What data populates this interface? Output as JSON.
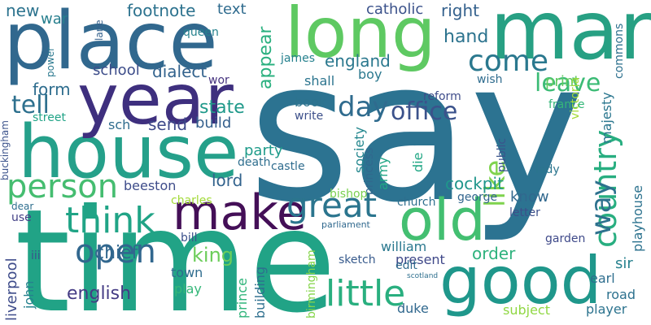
{
  "words": [
    {
      "text": "say",
      "color": "#2c7391"
    },
    {
      "text": "time",
      "color": "#21a386"
    },
    {
      "text": "man",
      "color": "#27a083"
    },
    {
      "text": "place",
      "color": "#31688e"
    },
    {
      "text": "long",
      "color": "#5ec962"
    },
    {
      "text": "house",
      "color": "#25a08a"
    },
    {
      "text": "year",
      "color": "#3e2f7e"
    },
    {
      "text": "good",
      "color": "#1f978b"
    },
    {
      "text": "old",
      "color": "#43bf71"
    },
    {
      "text": "make",
      "color": "#440f57"
    },
    {
      "text": "great",
      "color": "#2b758e"
    },
    {
      "text": "person",
      "color": "#45bd70"
    },
    {
      "text": "think",
      "color": "#20a486"
    },
    {
      "text": "country",
      "color": "#28ae80"
    },
    {
      "text": "come",
      "color": "#2a788e"
    },
    {
      "text": "little",
      "color": "#29af7f"
    },
    {
      "text": "open",
      "color": "#31678e"
    },
    {
      "text": "like",
      "color": "#7fd34e"
    },
    {
      "text": "day",
      "color": "#2f6b8e"
    },
    {
      "text": "way",
      "color": "#2d718e"
    },
    {
      "text": "leave",
      "color": "#3bbb75"
    },
    {
      "text": "office",
      "color": "#3b528b"
    },
    {
      "text": "tell",
      "color": "#2d708e"
    },
    {
      "text": "footnote",
      "color": "#2c728e"
    },
    {
      "text": "english",
      "color": "#443b84"
    },
    {
      "text": "lord",
      "color": "#33638d"
    },
    {
      "text": "king",
      "color": "#6ccd5a"
    },
    {
      "text": "chief",
      "color": "#31678e"
    },
    {
      "text": "hand",
      "color": "#2c738e"
    },
    {
      "text": "right",
      "color": "#34618d"
    },
    {
      "text": "catholic",
      "color": "#3b528b"
    },
    {
      "text": "england",
      "color": "#2a788e"
    },
    {
      "text": "appear",
      "color": "#2ab07f"
    },
    {
      "text": "form",
      "color": "#2e6d8e"
    },
    {
      "text": "new",
      "color": "#2c738e"
    },
    {
      "text": "war",
      "color": "#277f8e"
    },
    {
      "text": "text",
      "color": "#2f6b8e"
    },
    {
      "text": "shall",
      "color": "#2b748e"
    },
    {
      "text": "queen",
      "color": "#26828e"
    },
    {
      "text": "dialect",
      "color": "#33638d"
    },
    {
      "text": "school",
      "color": "#3d4d8a"
    },
    {
      "text": "state",
      "color": "#1f998a"
    },
    {
      "text": "party",
      "color": "#1e9b8a"
    },
    {
      "text": "build",
      "color": "#35608d"
    },
    {
      "text": "send",
      "color": "#3e4989"
    },
    {
      "text": "sch",
      "color": "#2f6c8e"
    },
    {
      "text": "street",
      "color": "#20a386"
    },
    {
      "text": "book",
      "color": "#2c738e"
    },
    {
      "text": "write",
      "color": "#3c4f8a"
    },
    {
      "text": "boy",
      "color": "#2a788e"
    },
    {
      "text": "james",
      "color": "#26818e"
    },
    {
      "text": "know",
      "color": "#31688e"
    },
    {
      "text": "order",
      "color": "#2db27d"
    },
    {
      "text": "lady",
      "color": "#2b758e"
    },
    {
      "text": "print",
      "color": "#60ca60"
    },
    {
      "text": "france",
      "color": "#35b779"
    },
    {
      "text": "reform",
      "color": "#3e4c8a"
    },
    {
      "text": "wish",
      "color": "#2f6c8e"
    },
    {
      "text": "victoria",
      "color": "#a5db36"
    },
    {
      "text": "public",
      "color": "#3a548c"
    },
    {
      "text": "majesty",
      "color": "#2a768e"
    },
    {
      "text": "commons",
      "color": "#2d708e"
    },
    {
      "text": "cockpit",
      "color": "#1f968b"
    },
    {
      "text": "society",
      "color": "#24878e"
    },
    {
      "text": "princess",
      "color": "#31688e"
    },
    {
      "text": "die",
      "color": "#22a785"
    },
    {
      "text": "army",
      "color": "#21a685"
    },
    {
      "text": "castle",
      "color": "#2f6c8e"
    },
    {
      "text": "death",
      "color": "#2e6e8e"
    },
    {
      "text": "beeston",
      "color": "#3e4c8a"
    },
    {
      "text": "bishop",
      "color": "#7ad151"
    },
    {
      "text": "charles",
      "color": "#a2da37"
    },
    {
      "text": "church",
      "color": "#2e6f8e"
    },
    {
      "text": "george",
      "color": "#32658e"
    },
    {
      "text": "letter",
      "color": "#3c4f8a"
    },
    {
      "text": "william",
      "color": "#2a788e"
    },
    {
      "text": "present",
      "color": "#3f4889"
    },
    {
      "text": "edit",
      "color": "#2f6b8e"
    },
    {
      "text": "garden",
      "color": "#3e4989"
    },
    {
      "text": "sir",
      "color": "#26818e"
    },
    {
      "text": "earl",
      "color": "#2e6e8e"
    },
    {
      "text": "road",
      "color": "#2c718e"
    },
    {
      "text": "player",
      "color": "#2c738e"
    },
    {
      "text": "subject",
      "color": "#90d743"
    },
    {
      "text": "duke",
      "color": "#31688e"
    },
    {
      "text": "sketch",
      "color": "#375a8c"
    },
    {
      "text": "prince",
      "color": "#31b57b"
    },
    {
      "text": "building",
      "color": "#2e6f8e"
    },
    {
      "text": "birmingham",
      "color": "#85d54a"
    },
    {
      "text": "town",
      "color": "#2f6c8e"
    },
    {
      "text": "play",
      "color": "#35b779"
    },
    {
      "text": "bill",
      "color": "#3b518b"
    },
    {
      "text": "john",
      "color": "#26818e"
    },
    {
      "text": "liverpool",
      "color": "#3e4c8a"
    },
    {
      "text": "use",
      "color": "#424086"
    },
    {
      "text": "dear",
      "color": "#2e6e8e"
    },
    {
      "text": "iii",
      "color": "#3a548c"
    },
    {
      "text": "buckingham",
      "color": "#3b528b"
    },
    {
      "text": "lane",
      "color": "#34618d"
    },
    {
      "text": "power",
      "color": "#2a788e"
    },
    {
      "text": "wor",
      "color": "#46337f"
    },
    {
      "text": "playhouse",
      "color": "#2c728e"
    },
    {
      "text": "parliament",
      "color": "#30698e"
    },
    {
      "text": "scotland",
      "color": "#2e6f8e"
    }
  ]
}
